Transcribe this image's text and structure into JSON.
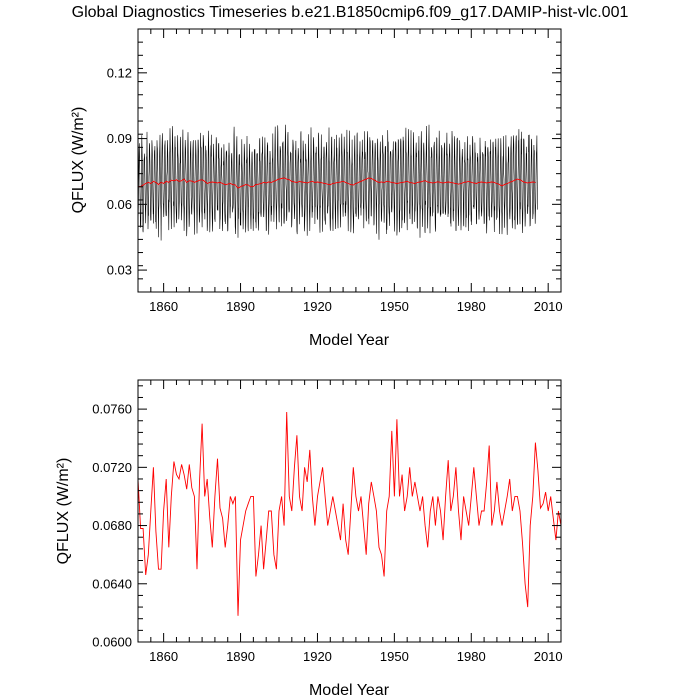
{
  "figure": {
    "title": "Global Diagnostics Timeseries b.e21.B1850cmip6.f09_g17.DAMIP-hist-vlc.001"
  },
  "colors": {
    "monthly": "#000000",
    "annual": "#ff0000"
  },
  "chart_data": [
    {
      "type": "line",
      "xlabel": "Model Year",
      "ylabel": "QFLUX (W/m²)",
      "xlim": [
        1850,
        2015
      ],
      "ylim": [
        0.02,
        0.14
      ],
      "xticks": [
        1860,
        1890,
        1920,
        1950,
        1980,
        2010
      ],
      "xtick_labels": [
        "1860",
        "1890",
        "1920",
        "1950",
        "1980",
        "2010"
      ],
      "yticks": [
        0.03,
        0.06,
        0.09,
        0.12
      ],
      "ytick_labels": [
        "0.03",
        "0.06",
        "0.09",
        "0.12"
      ],
      "series": [
        {
          "style": "monthly",
          "x_start": 1850,
          "step": 0.0833333,
          "note_shape": "seasonal oscillation",
          "annual_means_ref": "annual",
          "amplitude_typical": 0.018,
          "values_per_year": 12
        },
        {
          "style": "annual-smoothed",
          "x_start": 1850,
          "step": 1,
          "values": [
            0.0682,
            0.068,
            0.0688,
            0.0695,
            0.07,
            0.0695,
            0.0705,
            0.07,
            0.069,
            0.07,
            0.0695,
            0.0705,
            0.07,
            0.071,
            0.0708,
            0.0712,
            0.0705,
            0.0708,
            0.0715,
            0.07,
            0.0708,
            0.0706,
            0.07,
            0.0705,
            0.071,
            0.0712,
            0.0705,
            0.0695,
            0.07,
            0.0702,
            0.07,
            0.0698,
            0.07,
            0.0695,
            0.069,
            0.0692,
            0.0695,
            0.069,
            0.0688,
            0.0675,
            0.068,
            0.0685,
            0.069,
            0.0688,
            0.068,
            0.0682,
            0.069,
            0.0692,
            0.0695,
            0.07,
            0.0698,
            0.0702,
            0.07,
            0.0705,
            0.071,
            0.0715,
            0.0718,
            0.072,
            0.0715,
            0.0712,
            0.0705,
            0.0702,
            0.07,
            0.0705,
            0.0702,
            0.07,
            0.0698,
            0.0702,
            0.0705,
            0.07,
            0.0702,
            0.07,
            0.0698,
            0.0695,
            0.0692,
            0.069,
            0.0695,
            0.0698,
            0.07,
            0.0702,
            0.0705,
            0.07,
            0.0695,
            0.069,
            0.0688,
            0.0695,
            0.07,
            0.0705,
            0.071,
            0.0715,
            0.072,
            0.0718,
            0.0712,
            0.0705,
            0.07,
            0.0702,
            0.07,
            0.0705,
            0.0703,
            0.07,
            0.0698,
            0.0695,
            0.0698,
            0.07,
            0.0702,
            0.0705,
            0.07,
            0.0698,
            0.0695,
            0.07,
            0.0702,
            0.0705,
            0.0708,
            0.0702,
            0.07,
            0.0698,
            0.07,
            0.0703,
            0.07,
            0.0698,
            0.07,
            0.0702,
            0.07,
            0.0698,
            0.0695,
            0.0692,
            0.0695,
            0.07,
            0.0702,
            0.0705,
            0.07,
            0.0698,
            0.0695,
            0.07,
            0.0702,
            0.07,
            0.0698,
            0.07,
            0.0702,
            0.07,
            0.0695,
            0.069,
            0.0685,
            0.069,
            0.0695,
            0.07,
            0.0705,
            0.071,
            0.0715,
            0.0712,
            0.0705,
            0.07,
            0.0698,
            0.07,
            0.0702,
            0.07
          ]
        }
      ]
    },
    {
      "type": "line",
      "xlabel": "Model Year",
      "ylabel": "QFLUX (W/m²)",
      "xlim": [
        1850,
        2015
      ],
      "ylim": [
        0.06,
        0.078
      ],
      "xticks": [
        1860,
        1890,
        1920,
        1950,
        1980,
        2010
      ],
      "xtick_labels": [
        "1860",
        "1890",
        "1920",
        "1950",
        "1980",
        "2010"
      ],
      "yticks": [
        0.06,
        0.064,
        0.068,
        0.072,
        0.076
      ],
      "ytick_labels": [
        "0.0600",
        "0.0640",
        "0.0680",
        "0.0720",
        "0.0760"
      ],
      "series": [
        {
          "style": "annual",
          "x_start": 1850,
          "step": 1,
          "values": [
            0.0712,
            0.0678,
            0.0678,
            0.0646,
            0.066,
            0.069,
            0.072,
            0.0676,
            0.065,
            0.065,
            0.069,
            0.0712,
            0.0665,
            0.07,
            0.0724,
            0.0715,
            0.0712,
            0.0722,
            0.0715,
            0.0705,
            0.0722,
            0.0706,
            0.07,
            0.065,
            0.071,
            0.075,
            0.07,
            0.0712,
            0.0685,
            0.0665,
            0.07,
            0.0726,
            0.0692,
            0.0685,
            0.0665,
            0.068,
            0.07,
            0.0695,
            0.07,
            0.0618,
            0.067,
            0.068,
            0.069,
            0.0695,
            0.07,
            0.07,
            0.0645,
            0.066,
            0.068,
            0.065,
            0.067,
            0.069,
            0.069,
            0.066,
            0.065,
            0.069,
            0.07,
            0.068,
            0.0758,
            0.07,
            0.069,
            0.072,
            0.0742,
            0.07,
            0.069,
            0.072,
            0.071,
            0.0732,
            0.07,
            0.068,
            0.07,
            0.071,
            0.072,
            0.07,
            0.068,
            0.069,
            0.07,
            0.069,
            0.068,
            0.067,
            0.0695,
            0.067,
            0.066,
            0.069,
            0.072,
            0.07,
            0.069,
            0.07,
            0.068,
            0.066,
            0.0695,
            0.071,
            0.07,
            0.069,
            0.0665,
            0.066,
            0.0645,
            0.069,
            0.07,
            0.0745,
            0.07,
            0.0753,
            0.07,
            0.0715,
            0.069,
            0.07,
            0.072,
            0.07,
            0.071,
            0.07,
            0.069,
            0.07,
            0.068,
            0.0665,
            0.069,
            0.07,
            0.068,
            0.07,
            0.069,
            0.067,
            0.07,
            0.0725,
            0.069,
            0.07,
            0.072,
            0.069,
            0.067,
            0.07,
            0.069,
            0.068,
            0.07,
            0.072,
            0.07,
            0.068,
            0.069,
            0.069,
            0.071,
            0.0735,
            0.068,
            0.069,
            0.071,
            0.069,
            0.068,
            0.069,
            0.07,
            0.0712,
            0.069,
            0.07,
            0.07,
            0.069,
            0.0668,
            0.064,
            0.0624,
            0.068,
            0.07,
            0.0737,
            0.0718,
            0.0692,
            0.0695,
            0.0703,
            0.069,
            0.07,
            0.0685,
            0.067,
            0.069,
            0.068
          ]
        }
      ]
    }
  ]
}
